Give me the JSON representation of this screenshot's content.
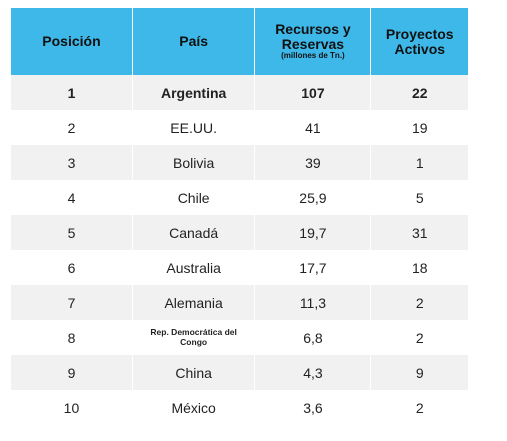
{
  "header": {
    "posicion": "Posición",
    "pais": "País",
    "recursos_main": "Recursos y Reservas",
    "recursos_sub": "(millones de Tn.)",
    "proyectos": "Proyectos Activos"
  },
  "rows": [
    {
      "pos": "1",
      "pais": "Argentina",
      "recursos": "107",
      "proyectos": "22"
    },
    {
      "pos": "2",
      "pais": "EE.UU.",
      "recursos": "41",
      "proyectos": "19"
    },
    {
      "pos": "3",
      "pais": "Bolivia",
      "recursos": "39",
      "proyectos": "1"
    },
    {
      "pos": "4",
      "pais": "Chile",
      "recursos": "25,9",
      "proyectos": "5"
    },
    {
      "pos": "5",
      "pais": "Canadá",
      "recursos": "19,7",
      "proyectos": "31"
    },
    {
      "pos": "6",
      "pais": "Australia",
      "recursos": "17,7",
      "proyectos": "18"
    },
    {
      "pos": "7",
      "pais": "Alemania",
      "recursos": "11,3",
      "proyectos": "2"
    },
    {
      "pos": "8",
      "pais": "Rep. Democrática del Congo",
      "recursos": "6,8",
      "proyectos": "2"
    },
    {
      "pos": "9",
      "pais": "China",
      "recursos": "4,3",
      "proyectos": "9"
    },
    {
      "pos": "10",
      "pais": "México",
      "recursos": "3,6",
      "proyectos": "2"
    }
  ],
  "colors": {
    "header_bg": "#3db8e8",
    "stripe_bg": "#f1f1f1"
  }
}
